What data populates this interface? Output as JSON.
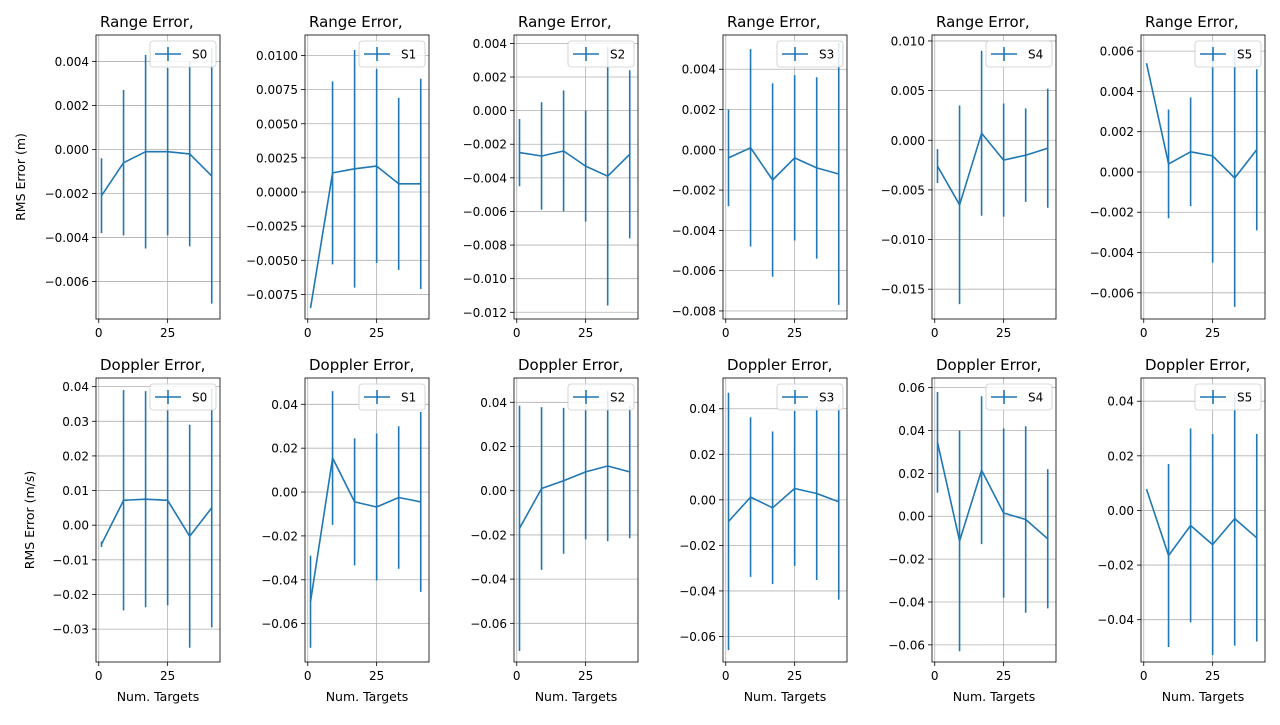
{
  "figure": {
    "row_ylabels": [
      "RMS Error (m)",
      "RMS Error (m/s)"
    ],
    "xlabel": "Num. Targets"
  },
  "chart_data": [
    {
      "type": "line",
      "title": "Range Error,",
      "series": [
        {
          "name": "S0",
          "x": [
            1,
            9,
            17,
            25,
            33,
            41
          ],
          "y": [
            -0.0021,
            -0.0006,
            -0.0001,
            -0.0001,
            -0.0002,
            -0.0012
          ],
          "err": [
            0.0017,
            0.0033,
            0.0044,
            0.0038,
            0.0042,
            0.0058
          ]
        }
      ],
      "xlim": [
        -1,
        44
      ],
      "ylim": [
        -0.0077,
        0.0052
      ],
      "xticks": [
        0,
        25
      ],
      "yticks": [
        -0.006,
        -0.004,
        -0.002,
        0.0,
        0.002,
        0.004
      ],
      "ytick_labels": [
        "−0.006",
        "−0.004",
        "−0.002",
        "0.000",
        "0.002",
        "0.004"
      ],
      "xlabel": "",
      "ylabel": "RMS Error (m)",
      "grid": true,
      "legend": "upper right"
    },
    {
      "type": "line",
      "title": "Range Error,",
      "series": [
        {
          "name": "S1",
          "x": [
            1,
            9,
            17,
            25,
            33,
            41
          ],
          "y": [
            -0.0085,
            0.0014,
            0.0017,
            0.0019,
            0.0006,
            0.0006
          ],
          "err": [
            0.0,
            0.0067,
            0.0087,
            0.0071,
            0.0063,
            0.0077
          ]
        }
      ],
      "xlim": [
        -1,
        44
      ],
      "ylim": [
        -0.0093,
        0.0115
      ],
      "xticks": [
        0,
        25
      ],
      "yticks": [
        -0.0075,
        -0.005,
        -0.0025,
        0.0,
        0.0025,
        0.005,
        0.0075,
        0.01
      ],
      "ytick_labels": [
        "−0.0075",
        "−0.0050",
        "−0.0025",
        "0.0000",
        "0.0025",
        "0.0050",
        "0.0075",
        "0.0100"
      ],
      "xlabel": "",
      "ylabel": "",
      "grid": true,
      "legend": "upper right"
    },
    {
      "type": "line",
      "title": "Range Error,",
      "series": [
        {
          "name": "S2",
          "x": [
            1,
            9,
            17,
            25,
            33,
            41
          ],
          "y": [
            -0.0025,
            -0.0027,
            -0.0024,
            -0.0033,
            -0.0039,
            -0.0026
          ],
          "err": [
            0.002,
            0.0032,
            0.0036,
            0.0033,
            0.0077,
            0.005
          ]
        }
      ],
      "xlim": [
        -1,
        44
      ],
      "ylim": [
        -0.0124,
        0.0045
      ],
      "xticks": [
        0,
        25
      ],
      "yticks": [
        -0.012,
        -0.01,
        -0.008,
        -0.006,
        -0.004,
        -0.002,
        0.0,
        0.002,
        0.004
      ],
      "ytick_labels": [
        "−0.012",
        "−0.010",
        "−0.008",
        "−0.006",
        "−0.004",
        "−0.002",
        "0.000",
        "0.002",
        "0.004"
      ],
      "xlabel": "",
      "ylabel": "",
      "grid": true,
      "legend": "upper right"
    },
    {
      "type": "line",
      "title": "Range Error,",
      "series": [
        {
          "name": "S3",
          "x": [
            1,
            9,
            17,
            25,
            33,
            41
          ],
          "y": [
            -0.0004,
            0.0001,
            -0.0015,
            -0.0004,
            -0.0009,
            -0.0012
          ],
          "err": [
            0.0024,
            0.0049,
            0.0048,
            0.0041,
            0.0045,
            0.0065
          ]
        }
      ],
      "xlim": [
        -1,
        44
      ],
      "ylim": [
        -0.0084,
        0.0057
      ],
      "xticks": [
        0,
        25
      ],
      "yticks": [
        -0.008,
        -0.006,
        -0.004,
        -0.002,
        0.0,
        0.002,
        0.004
      ],
      "ytick_labels": [
        "−0.008",
        "−0.006",
        "−0.004",
        "−0.002",
        "0.000",
        "0.002",
        "0.004"
      ],
      "xlabel": "",
      "ylabel": "",
      "grid": true,
      "legend": "upper right"
    },
    {
      "type": "line",
      "title": "Range Error,",
      "series": [
        {
          "name": "S4",
          "x": [
            1,
            9,
            17,
            25,
            33,
            41
          ],
          "y": [
            -0.0026,
            -0.0065,
            0.0007,
            -0.002,
            -0.0015,
            -0.0008
          ],
          "err": [
            0.0017,
            0.01,
            0.0083,
            0.0057,
            0.0047,
            0.006
          ]
        }
      ],
      "xlim": [
        -1,
        44
      ],
      "ylim": [
        -0.018,
        0.0106
      ],
      "xticks": [
        0,
        25
      ],
      "yticks": [
        -0.015,
        -0.01,
        -0.005,
        0.0,
        0.005,
        0.01
      ],
      "ytick_labels": [
        "−0.015",
        "−0.010",
        "−0.005",
        "0.000",
        "0.005",
        "0.010"
      ],
      "xlabel": "",
      "ylabel": "",
      "grid": true,
      "legend": "upper right"
    },
    {
      "type": "line",
      "title": "Range Error,",
      "series": [
        {
          "name": "S5",
          "x": [
            1,
            9,
            17,
            25,
            33,
            41
          ],
          "y": [
            0.0054,
            0.0004,
            0.001,
            0.0008,
            -0.0003,
            0.0011
          ],
          "err": [
            0.0,
            0.0027,
            0.0027,
            0.0053,
            0.0064,
            0.004
          ]
        }
      ],
      "xlim": [
        -1,
        44
      ],
      "ylim": [
        -0.0073,
        0.0068
      ],
      "xticks": [
        0,
        25
      ],
      "yticks": [
        -0.006,
        -0.004,
        -0.002,
        0.0,
        0.002,
        0.004,
        0.006
      ],
      "ytick_labels": [
        "−0.006",
        "−0.004",
        "−0.002",
        "0.000",
        "0.002",
        "0.004",
        "0.006"
      ],
      "xlabel": "",
      "ylabel": "",
      "grid": true,
      "legend": "upper right"
    },
    {
      "type": "line",
      "title": "Doppler Error,",
      "series": [
        {
          "name": "S0",
          "x": [
            1,
            9,
            17,
            25,
            33,
            41
          ],
          "y": [
            -0.0055,
            0.0072,
            0.0075,
            0.0072,
            -0.0032,
            0.005
          ],
          "err": [
            0.0008,
            0.0318,
            0.0312,
            0.0303,
            0.0322,
            0.0345
          ]
        }
      ],
      "xlim": [
        -1,
        44
      ],
      "ylim": [
        -0.0395,
        0.0425
      ],
      "xticks": [
        0,
        25
      ],
      "yticks": [
        -0.03,
        -0.02,
        -0.01,
        0.0,
        0.01,
        0.02,
        0.03,
        0.04
      ],
      "ytick_labels": [
        "−0.03",
        "−0.02",
        "−0.01",
        "0.00",
        "0.01",
        "0.02",
        "0.03",
        "0.04"
      ],
      "xlabel": "Num. Targets",
      "ylabel": "RMS Error (m/s)",
      "grid": true,
      "legend": "upper right"
    },
    {
      "type": "line",
      "title": "Doppler Error,",
      "series": [
        {
          "name": "S1",
          "x": [
            1,
            9,
            17,
            25,
            33,
            41
          ],
          "y": [
            -0.05,
            0.0155,
            -0.0045,
            -0.0068,
            -0.0025,
            -0.0045
          ],
          "err": [
            0.021,
            0.0305,
            0.029,
            0.0335,
            0.0325,
            0.041
          ]
        }
      ],
      "xlim": [
        -1,
        44
      ],
      "ylim": [
        -0.0775,
        0.052
      ],
      "xticks": [
        0,
        25
      ],
      "yticks": [
        -0.06,
        -0.04,
        -0.02,
        0.0,
        0.02,
        0.04
      ],
      "ytick_labels": [
        "−0.06",
        "−0.04",
        "−0.02",
        "0.00",
        "0.02",
        "0.04"
      ],
      "xlabel": "Num. Targets",
      "ylabel": "",
      "grid": true,
      "legend": "upper right"
    },
    {
      "type": "line",
      "title": "Doppler Error,",
      "series": [
        {
          "name": "S2",
          "x": [
            1,
            9,
            17,
            25,
            33,
            41
          ],
          "y": [
            -0.017,
            0.001,
            0.0045,
            0.0085,
            0.0112,
            0.0085
          ],
          "err": [
            0.0555,
            0.0368,
            0.033,
            0.0305,
            0.034,
            0.03
          ]
        }
      ],
      "xlim": [
        -1,
        44
      ],
      "ylim": [
        -0.0775,
        0.051
      ],
      "xticks": [
        0,
        25
      ],
      "yticks": [
        -0.06,
        -0.04,
        -0.02,
        0.0,
        0.02,
        0.04
      ],
      "ytick_labels": [
        "−0.06",
        "−0.04",
        "−0.02",
        "0.00",
        "0.02",
        "0.04"
      ],
      "xlabel": "Num. Targets",
      "ylabel": "",
      "grid": true,
      "legend": "upper right"
    },
    {
      "type": "line",
      "title": "Doppler Error,",
      "series": [
        {
          "name": "S3",
          "x": [
            1,
            9,
            17,
            25,
            33,
            41
          ],
          "y": [
            -0.0095,
            0.0012,
            -0.0035,
            0.005,
            0.0028,
            -0.0008
          ],
          "err": [
            0.0565,
            0.035,
            0.0335,
            0.034,
            0.038,
            0.043
          ]
        }
      ],
      "xlim": [
        -1,
        44
      ],
      "ylim": [
        -0.0712,
        0.0535
      ],
      "xticks": [
        0,
        25
      ],
      "yticks": [
        -0.06,
        -0.04,
        -0.02,
        0.0,
        0.02,
        0.04
      ],
      "ytick_labels": [
        "−0.06",
        "−0.04",
        "−0.02",
        "0.00",
        "0.02",
        "0.04"
      ],
      "xlabel": "Num. Targets",
      "ylabel": "",
      "grid": true,
      "legend": "upper right"
    },
    {
      "type": "line",
      "title": "Doppler Error,",
      "series": [
        {
          "name": "S4",
          "x": [
            1,
            9,
            17,
            25,
            33,
            41
          ],
          "y": [
            0.0345,
            -0.0115,
            0.0215,
            0.0015,
            -0.0015,
            -0.0105
          ],
          "err": [
            0.0235,
            0.0515,
            0.0345,
            0.0395,
            0.0435,
            0.0325
          ]
        }
      ],
      "xlim": [
        -1,
        44
      ],
      "ylim": [
        -0.068,
        0.0645
      ],
      "xticks": [
        0,
        25
      ],
      "yticks": [
        -0.06,
        -0.04,
        -0.02,
        0.0,
        0.02,
        0.04,
        0.06
      ],
      "ytick_labels": [
        "−0.06",
        "−0.04",
        "−0.02",
        "0.00",
        "0.02",
        "0.04",
        "0.06"
      ],
      "xlabel": "Num. Targets",
      "ylabel": "",
      "grid": true,
      "legend": "upper right"
    },
    {
      "type": "line",
      "title": "Doppler Error,",
      "series": [
        {
          "name": "S5",
          "x": [
            1,
            9,
            17,
            25,
            33,
            41
          ],
          "y": [
            0.0078,
            -0.0165,
            -0.0055,
            -0.0125,
            -0.003,
            -0.01
          ],
          "err": [
            0.0,
            0.0335,
            0.0355,
            0.0405,
            0.0465,
            0.038
          ]
        }
      ],
      "xlim": [
        -1,
        44
      ],
      "ylim": [
        -0.0555,
        0.0485
      ],
      "xticks": [
        0,
        25
      ],
      "yticks": [
        -0.04,
        -0.02,
        0.0,
        0.02,
        0.04
      ],
      "ytick_labels": [
        "−0.04",
        "−0.02",
        "0.00",
        "0.02",
        "0.04"
      ],
      "xlabel": "Num. Targets",
      "ylabel": "",
      "grid": true,
      "legend": "upper right"
    }
  ],
  "colors": {
    "series": "#1f77b4",
    "grid": "#b0b0b0",
    "axes": "#000000"
  }
}
